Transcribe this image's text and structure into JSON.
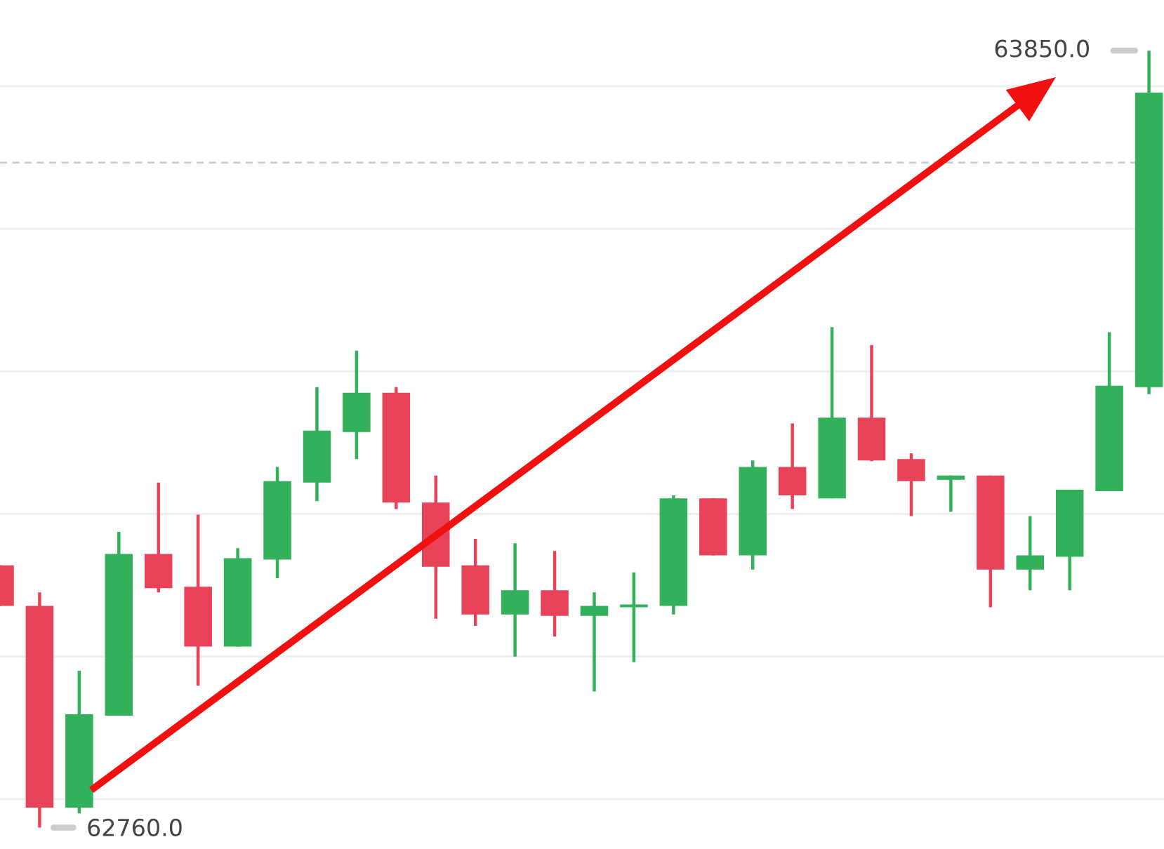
{
  "chart_data": {
    "type": "candlestick",
    "categories": [
      null,
      null,
      null,
      null,
      null,
      null,
      null,
      null,
      null,
      null,
      null,
      null,
      null,
      null,
      null,
      null,
      null,
      null,
      null,
      null,
      null,
      null,
      null,
      null,
      null,
      null,
      null,
      null,
      null,
      null
    ],
    "ohlc": [
      [
        63128,
        63128,
        63071,
        63071
      ],
      [
        63071,
        63090,
        62760,
        62788
      ],
      [
        62788,
        62980,
        62780,
        62919
      ],
      [
        62917,
        63175,
        62917,
        63144
      ],
      [
        63144,
        63244,
        63090,
        63096
      ],
      [
        63098,
        63199,
        62959,
        63014
      ],
      [
        63014,
        63152,
        63014,
        63138
      ],
      [
        63136,
        63266,
        63110,
        63246
      ],
      [
        63244,
        63378,
        63218,
        63317
      ],
      [
        63315,
        63429,
        63277,
        63370
      ],
      [
        63370,
        63378,
        63207,
        63216
      ],
      [
        63216,
        63254,
        63053,
        63126
      ],
      [
        63128,
        63165,
        63043,
        63059
      ],
      [
        63059,
        63159,
        63000,
        63093
      ],
      [
        63093,
        63148,
        63028,
        63057
      ],
      [
        63057,
        63090,
        62951,
        63071
      ],
      [
        63069,
        63118,
        62992,
        63073
      ],
      [
        63071,
        63226,
        63059,
        63222
      ],
      [
        63222,
        63222,
        63142,
        63142
      ],
      [
        63142,
        63275,
        63122,
        63266
      ],
      [
        63266,
        63327,
        63207,
        63226
      ],
      [
        63222,
        63462,
        63222,
        63335
      ],
      [
        63335,
        63437,
        63274,
        63275
      ],
      [
        63277,
        63285,
        63197,
        63246
      ],
      [
        63248,
        63254,
        63203,
        63254
      ],
      [
        63254,
        63254,
        63069,
        63122
      ],
      [
        63122,
        63197,
        63093,
        63142
      ],
      [
        63140,
        63234,
        63093,
        63234
      ],
      [
        63232,
        63455,
        63232,
        63380
      ],
      [
        63378,
        63850,
        63368,
        63791
      ]
    ],
    "colors": [
      "#e84258",
      "#e84258",
      "#32b05a",
      "#32b05a",
      "#e84258",
      "#e84258",
      "#32b05a",
      "#32b05a",
      "#32b05a",
      "#32b05a",
      "#e84258",
      "#e84258",
      "#e84258",
      "#32b05a",
      "#e84258",
      "#32b05a",
      "#32b05a",
      "#32b05a",
      "#e84258",
      "#32b05a",
      "#e84258",
      "#32b05a",
      "#e84258",
      "#e84258",
      "#32b05a",
      "#e84258",
      "#32b05a",
      "#32b05a",
      "#32b05a",
      "#32b05a"
    ],
    "ylim": [
      62730,
      63921
    ],
    "yticks": [
      {
        "value": 62800,
        "label": null
      },
      {
        "value": 63000,
        "label": null
      },
      {
        "value": 63200,
        "label": null
      },
      {
        "value": 63400,
        "label": null
      },
      {
        "value": 63600,
        "label": null
      },
      {
        "value": 63800,
        "label": null
      }
    ],
    "grid": "y",
    "ref_lines": [
      {
        "axis": "y",
        "value": 63693,
        "label": null,
        "color": "#c8c8c8",
        "line_style": "dashed"
      }
    ],
    "annotations": [
      "63850.0",
      "62760.0"
    ]
  }
}
